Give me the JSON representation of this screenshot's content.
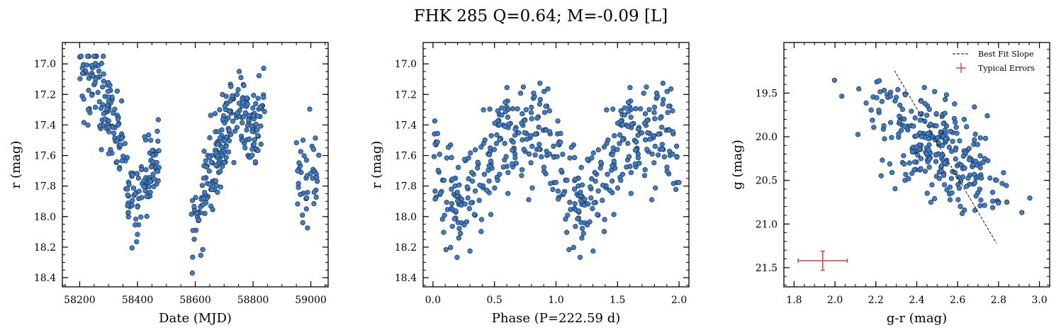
{
  "title": "FHK 285  Q=0.64; M=-0.09 [L]",
  "colors": {
    "point_fill": "#3a7fcf",
    "point_edge": "#1a1a1a",
    "fit_line": "#000000",
    "errorbar": "#d04040"
  },
  "chart_data": [
    {
      "type": "scatter",
      "xlabel": "Date (MJD)",
      "ylabel": "r (mag)",
      "xlim": [
        58140,
        59060
      ],
      "ylim": [
        18.46,
        16.86
      ],
      "y_inverted": true,
      "xticks": [
        58200,
        58400,
        58600,
        58800,
        59000
      ],
      "yticks": [
        17.0,
        17.2,
        17.4,
        17.6,
        17.8,
        18.0,
        18.2,
        18.4
      ],
      "xminor": 50,
      "yminor": 0.05,
      "segments": [
        {
          "x": [
            58200,
            58230,
            58270,
            58300,
            58330,
            58355,
            58370,
            58385,
            58400,
            58420,
            58440,
            58460,
            58475
          ],
          "y": [
            17.05,
            17.1,
            17.2,
            17.32,
            17.45,
            17.62,
            17.85,
            17.95,
            17.9,
            17.8,
            17.72,
            17.65,
            17.55
          ]
        },
        {
          "x": [
            58585,
            58620,
            58650,
            58680,
            58700,
            58720,
            58750,
            58780,
            58810,
            58840
          ],
          "y": [
            18.1,
            17.9,
            17.72,
            17.55,
            17.45,
            17.32,
            17.3,
            17.42,
            17.4,
            17.2
          ]
        },
        {
          "x": [
            58950,
            58970,
            58990,
            59010,
            59030
          ],
          "y": [
            17.75,
            17.82,
            17.85,
            17.75,
            17.7
          ]
        }
      ],
      "segment_spread": 0.14,
      "n_points_per_segment": [
        210,
        230,
        40
      ]
    },
    {
      "type": "scatter",
      "xlabel": "Phase (P=222.59 d)",
      "ylabel": "r (mag)",
      "xlim": [
        -0.08,
        2.08
      ],
      "ylim": [
        18.46,
        16.86
      ],
      "y_inverted": true,
      "xticks": [
        0.0,
        0.5,
        1.0,
        1.5,
        2.0
      ],
      "xtick_labels": [
        "0.0",
        "0.5",
        "1.0",
        "1.5",
        "2.0"
      ],
      "yticks": [
        17.0,
        17.2,
        17.4,
        17.6,
        17.8,
        18.0,
        18.2,
        18.4
      ],
      "xminor": 0.1,
      "yminor": 0.05,
      "period_days": 222.59,
      "phase_curve": {
        "phase": [
          0.0,
          0.1,
          0.2,
          0.3,
          0.4,
          0.5,
          0.6,
          0.7,
          0.8,
          0.9,
          1.0
        ],
        "mag": [
          17.55,
          17.8,
          17.95,
          17.85,
          17.7,
          17.55,
          17.45,
          17.4,
          17.45,
          17.4,
          17.55
        ]
      },
      "curve_spread": 0.22,
      "n_points_per_cycle": 240
    },
    {
      "type": "scatter",
      "xlabel": "g-r (mag)",
      "ylabel": "g (mag)",
      "xlim": [
        1.75,
        3.05
      ],
      "ylim": [
        21.72,
        18.92
      ],
      "y_inverted": true,
      "xticks": [
        1.8,
        2.0,
        2.2,
        2.4,
        2.6,
        2.8,
        3.0
      ],
      "yticks": [
        19.5,
        20.0,
        20.5,
        21.0,
        21.5
      ],
      "xminor": 0.05,
      "yminor": 0.1,
      "cloud": {
        "center_x": 2.5,
        "center_y": 20.1,
        "slope": 2.2,
        "n_points": 280
      },
      "best_fit": {
        "x": [
          2.29,
          2.79
        ],
        "y": [
          19.24,
          21.22
        ]
      },
      "typical_error": {
        "x": 1.94,
        "y": 21.42,
        "xerr": 0.12,
        "yerr": 0.11
      },
      "legend": {
        "position": "top-right",
        "entries": [
          "Best Fit Slope",
          "Typical Errors"
        ]
      }
    }
  ]
}
